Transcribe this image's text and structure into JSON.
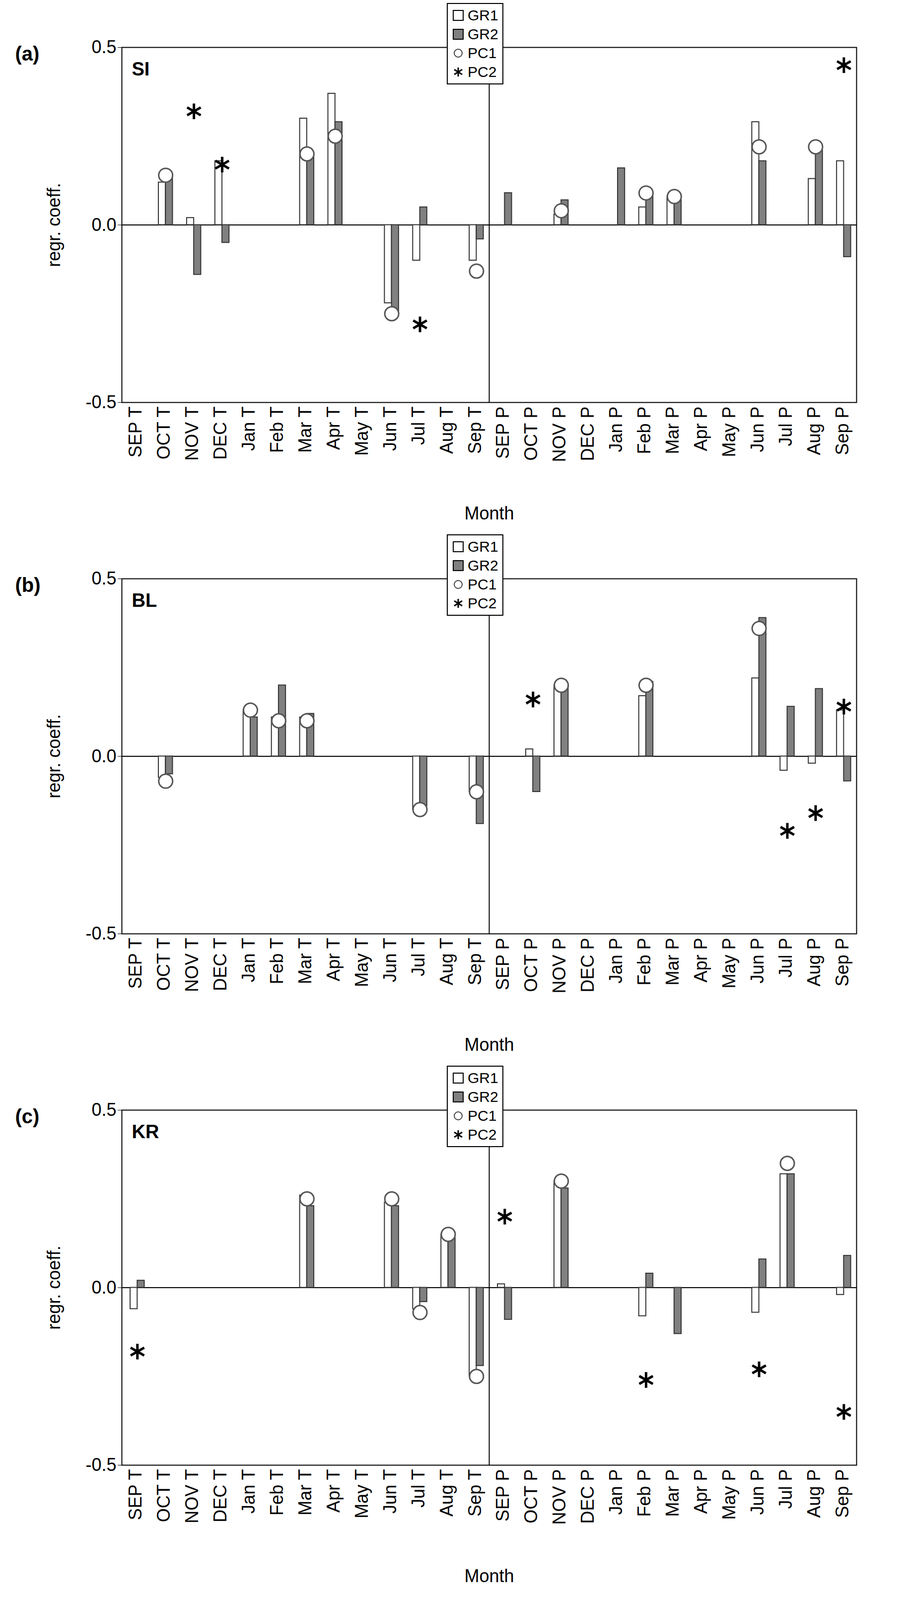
{
  "chart_data": [
    {
      "type": "bar",
      "annotation": "(a)",
      "title": "SI",
      "x_label": "Month",
      "y_label": "regr. coeff.",
      "categories": [
        "SEP T",
        "OCT T",
        "NOV T",
        "DEC T",
        "Jan T",
        "Feb T",
        "Mar T",
        "Apr T",
        "May T",
        "Jun T",
        "Jul T",
        "Aug T",
        "Sep T",
        "SEP P",
        "OCT P",
        "NOV P",
        "DEC P",
        "Jan P",
        "Feb P",
        "Mar P",
        "Apr P",
        "May P",
        "Jun P",
        "Jul P",
        "Aug P",
        "Sep P"
      ],
      "ylim": [
        -0.5,
        0.5
      ],
      "yticks": [
        -0.5,
        {
          "value": 0,
          "label": "0.0"
        },
        0.5
      ],
      "legend": "top",
      "series": [
        {
          "name": "GR1",
          "type": "bar",
          "color": "#ffffff",
          "values": [
            null,
            0.12,
            0.02,
            0.18,
            null,
            null,
            0.3,
            0.37,
            null,
            -0.22,
            -0.1,
            null,
            -0.1,
            null,
            null,
            0.03,
            null,
            null,
            0.05,
            0.08,
            null,
            null,
            0.29,
            null,
            0.13,
            0.18
          ]
        },
        {
          "name": "GR2",
          "type": "bar",
          "color": "#808080",
          "values": [
            null,
            0.13,
            -0.14,
            -0.05,
            null,
            null,
            0.2,
            0.29,
            null,
            -0.25,
            0.05,
            null,
            -0.04,
            0.09,
            null,
            0.07,
            null,
            0.16,
            0.09,
            0.07,
            null,
            null,
            0.18,
            null,
            0.21,
            -0.09
          ]
        },
        {
          "name": "PC1",
          "type": "scatter",
          "marker": "circle",
          "color": "#ffffff",
          "values": [
            null,
            0.14,
            null,
            null,
            null,
            null,
            0.2,
            0.25,
            null,
            -0.25,
            null,
            null,
            -0.13,
            null,
            null,
            0.04,
            null,
            null,
            0.09,
            0.08,
            null,
            null,
            0.22,
            null,
            0.22,
            null
          ]
        },
        {
          "name": "PC2",
          "type": "scatter",
          "marker": "asterisk",
          "color": "#000000",
          "values": [
            null,
            null,
            0.32,
            0.17,
            null,
            null,
            null,
            null,
            null,
            null,
            -0.28,
            null,
            null,
            null,
            null,
            null,
            null,
            null,
            null,
            null,
            null,
            null,
            null,
            null,
            null,
            0.45
          ]
        }
      ]
    },
    {
      "type": "bar",
      "annotation": "(b)",
      "title": "BL",
      "x_label": "Month",
      "y_label": "regr. coeff.",
      "categories": [
        "SEP T",
        "OCT T",
        "NOV T",
        "DEC T",
        "Jan T",
        "Feb T",
        "Mar T",
        "Apr T",
        "May T",
        "Jun T",
        "Jul T",
        "Aug T",
        "Sep T",
        "SEP P",
        "OCT P",
        "NOV P",
        "DEC P",
        "Jan P",
        "Feb P",
        "Mar P",
        "Apr P",
        "May P",
        "Jun P",
        "Jul P",
        "Aug P",
        "Sep P"
      ],
      "ylim": [
        -0.5,
        0.5
      ],
      "yticks": [
        -0.5,
        {
          "value": 0,
          "label": "0.0"
        },
        0.5
      ],
      "legend": "top",
      "series": [
        {
          "name": "GR1",
          "type": "bar",
          "color": "#ffffff",
          "values": [
            null,
            -0.06,
            null,
            null,
            0.13,
            0.11,
            0.11,
            null,
            null,
            null,
            -0.15,
            null,
            -0.1,
            null,
            0.02,
            0.2,
            null,
            null,
            0.17,
            null,
            null,
            null,
            0.22,
            -0.04,
            -0.02,
            0.13
          ]
        },
        {
          "name": "GR2",
          "type": "bar",
          "color": "#808080",
          "values": [
            null,
            -0.05,
            null,
            null,
            0.11,
            0.2,
            0.12,
            null,
            null,
            null,
            -0.14,
            null,
            -0.19,
            null,
            -0.1,
            0.2,
            null,
            null,
            0.21,
            null,
            null,
            null,
            0.39,
            0.14,
            0.19,
            -0.07
          ]
        },
        {
          "name": "PC1",
          "type": "scatter",
          "marker": "circle",
          "color": "#ffffff",
          "values": [
            null,
            -0.07,
            null,
            null,
            0.13,
            0.1,
            0.1,
            null,
            null,
            null,
            -0.15,
            null,
            -0.1,
            null,
            null,
            0.2,
            null,
            null,
            0.2,
            null,
            null,
            null,
            0.36,
            null,
            null,
            null
          ]
        },
        {
          "name": "PC2",
          "type": "scatter",
          "marker": "asterisk",
          "color": "#000000",
          "values": [
            null,
            null,
            null,
            null,
            null,
            null,
            null,
            null,
            null,
            null,
            null,
            null,
            null,
            null,
            0.16,
            null,
            null,
            null,
            null,
            null,
            null,
            null,
            null,
            -0.21,
            -0.16,
            0.14
          ]
        }
      ]
    },
    {
      "type": "bar",
      "annotation": "(c)",
      "title": "KR",
      "x_label": "Month",
      "y_label": "regr. coeff.",
      "categories": [
        "SEP T",
        "OCT T",
        "NOV T",
        "DEC T",
        "Jan T",
        "Feb T",
        "Mar T",
        "Apr T",
        "May T",
        "Jun T",
        "Jul T",
        "Aug T",
        "Sep T",
        "SEP P",
        "OCT P",
        "NOV P",
        "DEC P",
        "Jan P",
        "Feb P",
        "Mar P",
        "Apr P",
        "May P",
        "Jun P",
        "Jul P",
        "Aug P",
        "Sep P"
      ],
      "ylim": [
        -0.5,
        0.5
      ],
      "yticks": [
        -0.5,
        {
          "value": 0,
          "label": "0.0"
        },
        0.5
      ],
      "legend": "top",
      "series": [
        {
          "name": "GR1",
          "type": "bar",
          "color": "#ffffff",
          "values": [
            -0.06,
            null,
            null,
            null,
            null,
            null,
            0.26,
            null,
            null,
            0.24,
            -0.06,
            0.15,
            -0.25,
            0.01,
            null,
            0.3,
            null,
            null,
            -0.08,
            null,
            null,
            null,
            -0.07,
            0.32,
            null,
            -0.02
          ]
        },
        {
          "name": "GR2",
          "type": "bar",
          "color": "#808080",
          "values": [
            0.02,
            null,
            null,
            null,
            null,
            null,
            0.23,
            null,
            null,
            0.23,
            -0.04,
            0.14,
            -0.22,
            -0.09,
            null,
            0.28,
            null,
            null,
            0.04,
            -0.13,
            null,
            null,
            0.08,
            0.32,
            null,
            0.09
          ]
        },
        {
          "name": "PC1",
          "type": "scatter",
          "marker": "circle",
          "color": "#ffffff",
          "values": [
            null,
            null,
            null,
            null,
            null,
            null,
            0.25,
            null,
            null,
            0.25,
            -0.07,
            0.15,
            -0.25,
            null,
            null,
            0.3,
            null,
            null,
            null,
            null,
            null,
            null,
            null,
            0.35,
            null,
            null
          ]
        },
        {
          "name": "PC2",
          "type": "scatter",
          "marker": "asterisk",
          "color": "#000000",
          "values": [
            -0.18,
            null,
            null,
            null,
            null,
            null,
            null,
            null,
            null,
            null,
            null,
            null,
            null,
            0.2,
            null,
            null,
            null,
            null,
            -0.26,
            null,
            null,
            null,
            -0.23,
            null,
            null,
            -0.35
          ]
        }
      ]
    }
  ]
}
